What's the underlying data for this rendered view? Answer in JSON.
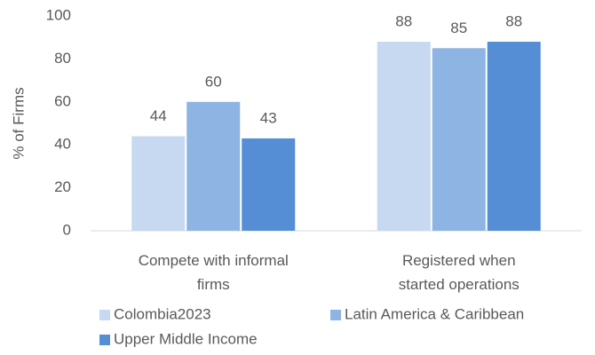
{
  "chart_data": {
    "type": "bar",
    "y_axis_label": "% of Firms",
    "categories": [
      "Compete with informal firms",
      "Registered when started operations"
    ],
    "series": [
      {
        "name": "Colombia2023",
        "color": "#c6d9f1",
        "values": [
          44,
          88
        ]
      },
      {
        "name": "Latin America & Caribbean",
        "color": "#8db4e2",
        "values": [
          60,
          85
        ]
      },
      {
        "name": "Upper Middle Income",
        "color": "#558ed5",
        "values": [
          43,
          88
        ]
      }
    ],
    "ylim": [
      0,
      100
    ],
    "yticks": [
      0,
      20,
      40,
      60,
      80,
      100
    ],
    "grid": false,
    "legend": "bottom"
  }
}
